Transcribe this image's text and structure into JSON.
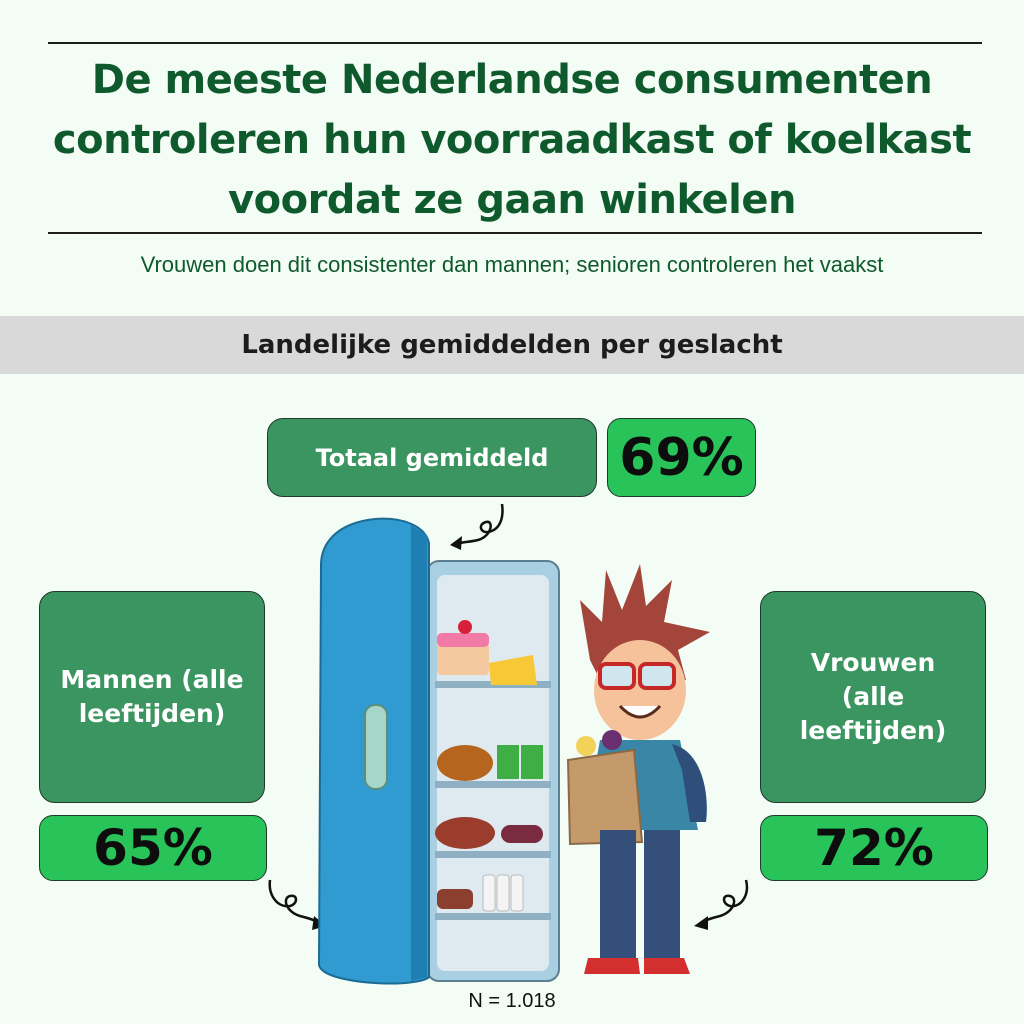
{
  "title": "De meeste Nederlandse consumenten controleren hun voorraadkast of koelkast voordat ze gaan winkelen",
  "subtitle": "Vrouwen doen dit consistenter dan mannen; senioren controleren het vaakst",
  "section_header": "Landelijke gemiddelden per geslacht",
  "total": {
    "label": "Totaal gemiddeld",
    "value": "69%"
  },
  "men": {
    "label": "Mannen (alle leeftijden)",
    "value": "65%"
  },
  "women": {
    "label": "Vrouwen (alle leeftijden)",
    "value": "72%"
  },
  "sample": "N = 1.018",
  "colors": {
    "title": "#0f5a2c",
    "label_box": "#3a9560",
    "value_box": "#28c45a",
    "band": "#d9d9d9"
  },
  "icons": [
    "fridge-illustration",
    "shopper-illustration",
    "curly-arrow-icon"
  ]
}
